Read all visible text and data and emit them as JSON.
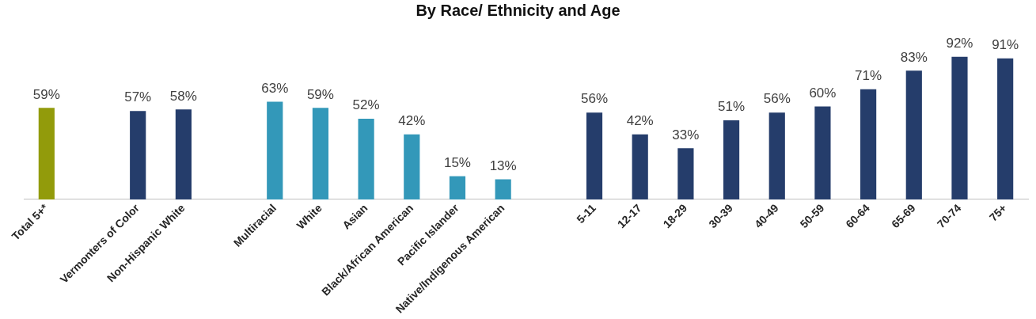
{
  "chart_data": {
    "type": "bar",
    "title": "By Race/ Ethnicity and Age",
    "categories": [
      "Total 5+*",
      null,
      "Vermonters of Color",
      "Non-Hispanic White",
      null,
      "Multiracial",
      "White",
      "Asian",
      "Black/African American",
      "Pacific Islander",
      "Native/Indigenous American",
      null,
      "5-11",
      "12-17",
      "18-29",
      "30-39",
      "40-49",
      "50-59",
      "60-64",
      "65-69",
      "70-74",
      "75+"
    ],
    "values": [
      59,
      null,
      57,
      58,
      null,
      63,
      59,
      52,
      42,
      15,
      13,
      null,
      56,
      42,
      33,
      51,
      56,
      60,
      71,
      83,
      92,
      91
    ],
    "colors": [
      "#929b0b",
      null,
      "#253d6b",
      "#253d6b",
      null,
      "#3398b9",
      "#3398b9",
      "#3398b9",
      "#3398b9",
      "#3398b9",
      "#3398b9",
      null,
      "#253d6b",
      "#253d6b",
      "#253d6b",
      "#253d6b",
      "#253d6b",
      "#253d6b",
      "#253d6b",
      "#253d6b",
      "#253d6b",
      "#253d6b"
    ],
    "value_labels": [
      "59%",
      null,
      "57%",
      "58%",
      null,
      "63%",
      "59%",
      "52%",
      "42%",
      "15%",
      "13%",
      null,
      "56%",
      "42%",
      "33%",
      "51%",
      "56%",
      "60%",
      "71%",
      "83%",
      "92%",
      "91%"
    ],
    "grid": false,
    "legend": false
  }
}
